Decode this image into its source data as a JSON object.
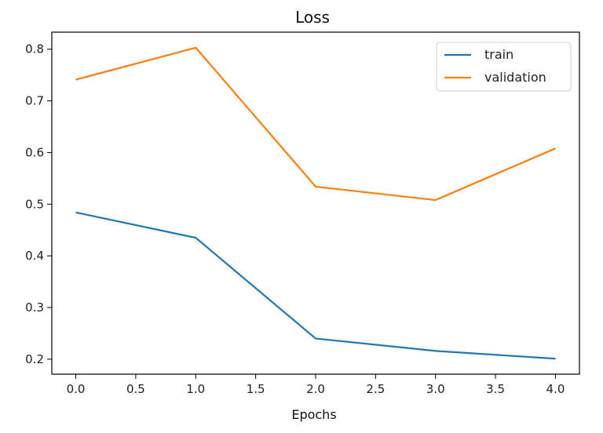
{
  "chart_data": {
    "type": "line",
    "title": "Loss",
    "xlabel": "Epochs",
    "ylabel": "",
    "x": [
      0,
      1,
      2,
      3,
      4
    ],
    "series": [
      {
        "name": "train",
        "color": "#1f77b4",
        "values": [
          0.484,
          0.435,
          0.24,
          0.216,
          0.201
        ]
      },
      {
        "name": "validation",
        "color": "#ff7f0e",
        "values": [
          0.741,
          0.803,
          0.534,
          0.508,
          0.608
        ]
      }
    ],
    "xlim": [
      -0.2,
      4.2
    ],
    "ylim": [
      0.171,
      0.833
    ],
    "xticks": [
      "0.0",
      "0.5",
      "1.0",
      "1.5",
      "2.0",
      "2.5",
      "3.0",
      "3.5",
      "4.0"
    ],
    "xtick_values": [
      0,
      0.5,
      1,
      1.5,
      2,
      2.5,
      3,
      3.5,
      4
    ],
    "yticks": [
      "0.2",
      "0.3",
      "0.4",
      "0.5",
      "0.6",
      "0.7",
      "0.8"
    ],
    "ytick_values": [
      0.2,
      0.3,
      0.4,
      0.5,
      0.6,
      0.7,
      0.8
    ],
    "grid": false,
    "legend_position": "top-right"
  }
}
